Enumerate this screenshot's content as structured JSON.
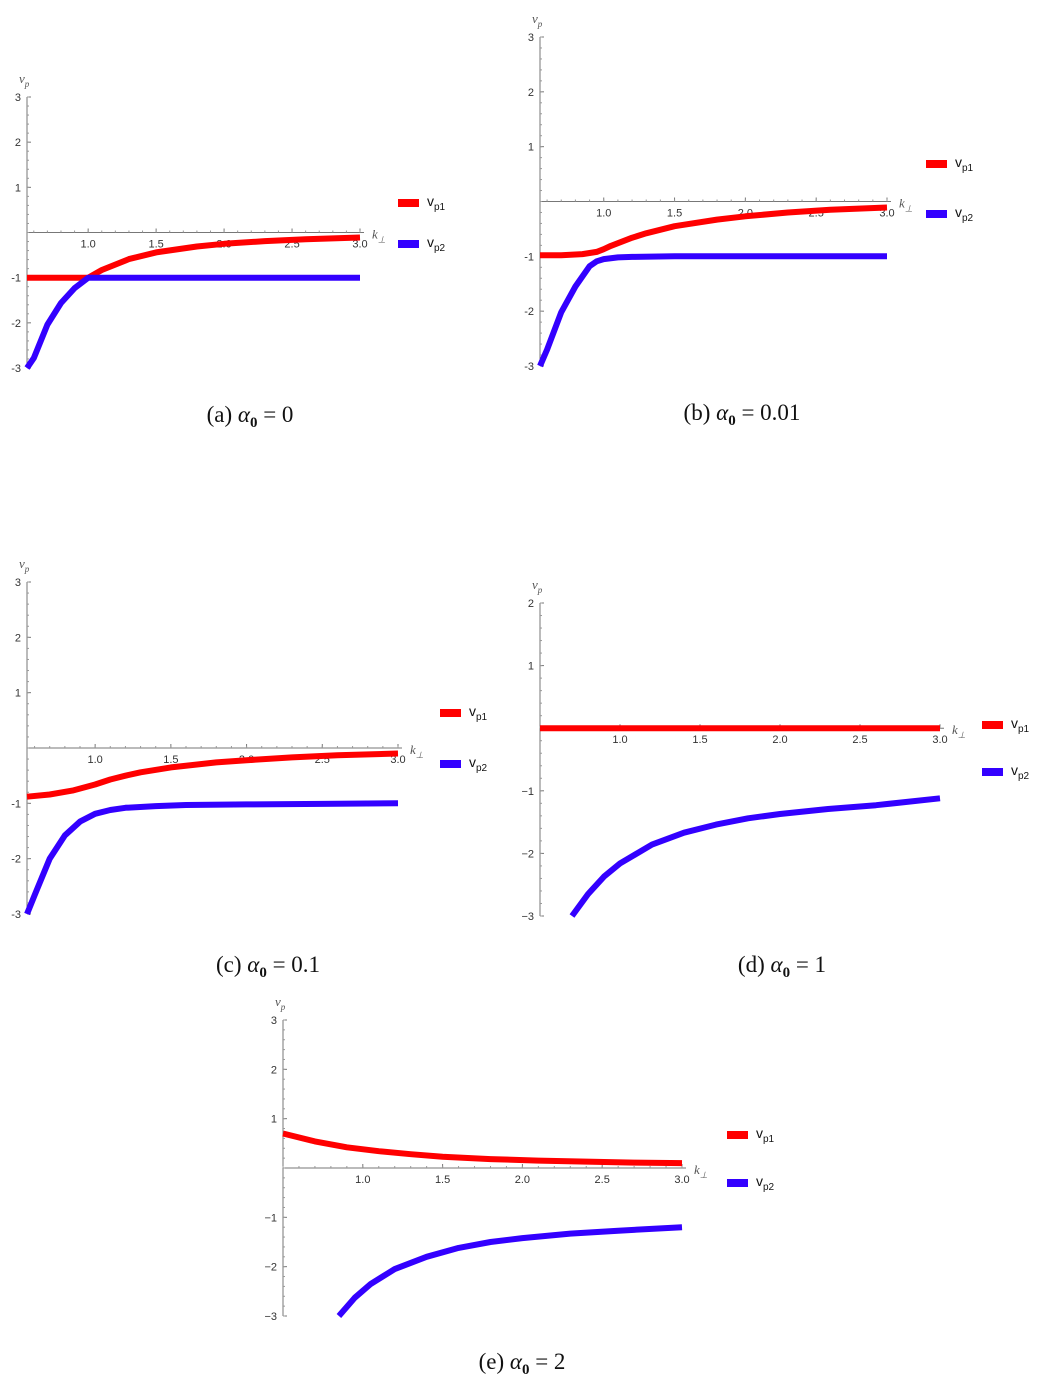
{
  "colors": {
    "vp1": "#ff0000",
    "vp2": "#3300ff"
  },
  "chart_data": [
    {
      "type": "line",
      "panel": "a",
      "caption": {
        "prefix": "(a)",
        "symbol": "α",
        "sub": "0",
        "rest": "= 0"
      },
      "xlabel": "k",
      "xlabel_sub": "⊥",
      "ylabel": "v",
      "ylabel_sub": "p",
      "xlim": [
        0.55,
        3.0
      ],
      "ylim": [
        -3,
        3
      ],
      "xticks": [
        "1.0",
        "1.5",
        "2.0",
        "2.5",
        "3.0"
      ],
      "yticks": [
        "3",
        "2",
        "1",
        "-1",
        "-2",
        "-3"
      ],
      "legend": [
        {
          "name": "v",
          "sub": "p1"
        },
        {
          "name": "v",
          "sub": "p2"
        }
      ],
      "series": [
        {
          "name": "vp1",
          "x": [
            0.55,
            0.7,
            0.9,
            1.0,
            1.1,
            1.3,
            1.5,
            1.8,
            2.0,
            2.3,
            2.6,
            3.0
          ],
          "y": [
            -1,
            -1,
            -1,
            -1,
            -0.83,
            -0.59,
            -0.44,
            -0.31,
            -0.25,
            -0.19,
            -0.15,
            -0.11
          ]
        },
        {
          "name": "vp2",
          "x": [
            0.55,
            0.6,
            0.7,
            0.8,
            0.9,
            1.0,
            1.1,
            1.3,
            1.5,
            2.0,
            2.5,
            3.0
          ],
          "y": [
            -3,
            -2.78,
            -2.04,
            -1.56,
            -1.23,
            -1,
            -1,
            -1,
            -1,
            -1,
            -1,
            -1
          ]
        }
      ]
    },
    {
      "type": "line",
      "panel": "b",
      "caption": {
        "prefix": "(b)",
        "symbol": "α",
        "sub": "0",
        "rest": "= 0.01"
      },
      "xlabel": "k",
      "xlabel_sub": "⊥",
      "ylabel": "v",
      "ylabel_sub": "p",
      "xlim": [
        0.55,
        3.0
      ],
      "ylim": [
        -3,
        3
      ],
      "xticks": [
        "1.0",
        "1.5",
        "2.0",
        "2.5",
        "3.0"
      ],
      "yticks": [
        "3",
        "2",
        "1",
        "-1",
        "-2",
        "-3"
      ],
      "legend": [
        {
          "name": "v",
          "sub": "p1"
        },
        {
          "name": "v",
          "sub": "p2"
        }
      ],
      "series": [
        {
          "name": "vp1",
          "x": [
            0.55,
            0.7,
            0.85,
            0.95,
            1.0,
            1.05,
            1.1,
            1.2,
            1.3,
            1.5,
            1.8,
            2.0,
            2.3,
            2.6,
            3.0
          ],
          "y": [
            -0.98,
            -0.98,
            -0.96,
            -0.92,
            -0.87,
            -0.81,
            -0.76,
            -0.66,
            -0.58,
            -0.45,
            -0.33,
            -0.27,
            -0.2,
            -0.15,
            -0.11
          ]
        },
        {
          "name": "vp2",
          "x": [
            0.55,
            0.6,
            0.7,
            0.8,
            0.9,
            0.95,
            1.0,
            1.1,
            1.2,
            1.5,
            2.0,
            2.5,
            3.0
          ],
          "y": [
            -3,
            -2.7,
            -2.02,
            -1.55,
            -1.18,
            -1.09,
            -1.05,
            -1.02,
            -1.01,
            -1,
            -1,
            -1,
            -1
          ]
        }
      ]
    },
    {
      "type": "line",
      "panel": "c",
      "caption": {
        "prefix": "(c)",
        "symbol": "α",
        "sub": "0",
        "rest": "= 0.1"
      },
      "xlabel": "k",
      "xlabel_sub": "⊥",
      "ylabel": "v",
      "ylabel_sub": "p",
      "xlim": [
        0.55,
        3.0
      ],
      "ylim": [
        -3,
        3
      ],
      "xticks": [
        "1.0",
        "1.5",
        "2.0",
        "2.5",
        "3.0"
      ],
      "yticks": [
        "3",
        "2",
        "1",
        "-1",
        "-2",
        "-3"
      ],
      "legend": [
        {
          "name": "v",
          "sub": "p1"
        },
        {
          "name": "v",
          "sub": "p2"
        }
      ],
      "series": [
        {
          "name": "vp1",
          "x": [
            0.55,
            0.7,
            0.85,
            1.0,
            1.1,
            1.2,
            1.3,
            1.5,
            1.8,
            2.0,
            2.3,
            2.6,
            3.0
          ],
          "y": [
            -0.88,
            -0.84,
            -0.77,
            -0.66,
            -0.57,
            -0.5,
            -0.44,
            -0.35,
            -0.26,
            -0.22,
            -0.17,
            -0.13,
            -0.1
          ]
        },
        {
          "name": "vp2",
          "x": [
            0.55,
            0.6,
            0.7,
            0.8,
            0.9,
            1.0,
            1.1,
            1.2,
            1.4,
            1.6,
            2.0,
            2.5,
            3.0
          ],
          "y": [
            -3,
            -2.66,
            -2.0,
            -1.58,
            -1.33,
            -1.19,
            -1.12,
            -1.08,
            -1.05,
            -1.03,
            -1.02,
            -1.01,
            -1
          ]
        }
      ]
    },
    {
      "type": "line",
      "panel": "d",
      "caption": {
        "prefix": "(d)",
        "symbol": "α",
        "sub": "0",
        "rest": "= 1"
      },
      "xlabel": "k",
      "xlabel_sub": "⊥",
      "ylabel": "v",
      "ylabel_sub": "p",
      "xlim": [
        0.5,
        3.0
      ],
      "ylim": [
        -3,
        2
      ],
      "xticks": [
        "1.0",
        "1.5",
        "2.0",
        "2.5",
        "3.0"
      ],
      "yticks": [
        "2",
        "1",
        "−1",
        "−2",
        "−3"
      ],
      "legend": [
        {
          "name": "v",
          "sub": "p1"
        },
        {
          "name": "v",
          "sub": "p2"
        }
      ],
      "series": [
        {
          "name": "vp1",
          "x": [
            0.5,
            1.0,
            1.5,
            2.0,
            2.5,
            3.0
          ],
          "y": [
            0,
            0,
            0,
            0,
            0,
            0
          ]
        },
        {
          "name": "vp2",
          "x": [
            0.7,
            0.8,
            0.9,
            1.0,
            1.2,
            1.4,
            1.6,
            1.8,
            2.0,
            2.3,
            2.6,
            3.0
          ],
          "y": [
            -3,
            -2.65,
            -2.37,
            -2.16,
            -1.86,
            -1.67,
            -1.54,
            -1.44,
            -1.37,
            -1.29,
            -1.23,
            -1.12
          ]
        }
      ]
    },
    {
      "type": "line",
      "panel": "e",
      "caption": {
        "prefix": "(e)",
        "symbol": "α",
        "sub": "0",
        "rest": "= 2"
      },
      "xlabel": "k",
      "xlabel_sub": "⊥",
      "ylabel": "v",
      "ylabel_sub": "p",
      "xlim": [
        0.5,
        3.0
      ],
      "ylim": [
        -3,
        3
      ],
      "xticks": [
        "1.0",
        "1.5",
        "2.0",
        "2.5",
        "3.0"
      ],
      "yticks": [
        "3",
        "2",
        "1",
        "−1",
        "−2",
        "−3"
      ],
      "legend": [
        {
          "name": "v",
          "sub": "p1"
        },
        {
          "name": "v",
          "sub": "p2"
        }
      ],
      "series": [
        {
          "name": "vp1",
          "x": [
            0.5,
            0.7,
            0.9,
            1.1,
            1.3,
            1.5,
            1.8,
            2.1,
            2.4,
            2.7,
            3.0
          ],
          "y": [
            0.7,
            0.54,
            0.42,
            0.34,
            0.28,
            0.23,
            0.18,
            0.15,
            0.13,
            0.11,
            0.1
          ]
        },
        {
          "name": "vp2",
          "x": [
            0.85,
            0.95,
            1.05,
            1.2,
            1.4,
            1.6,
            1.8,
            2.0,
            2.3,
            2.6,
            3.0
          ],
          "y": [
            -3,
            -2.63,
            -2.35,
            -2.05,
            -1.8,
            -1.62,
            -1.5,
            -1.42,
            -1.33,
            -1.27,
            -1.2
          ]
        }
      ]
    }
  ]
}
